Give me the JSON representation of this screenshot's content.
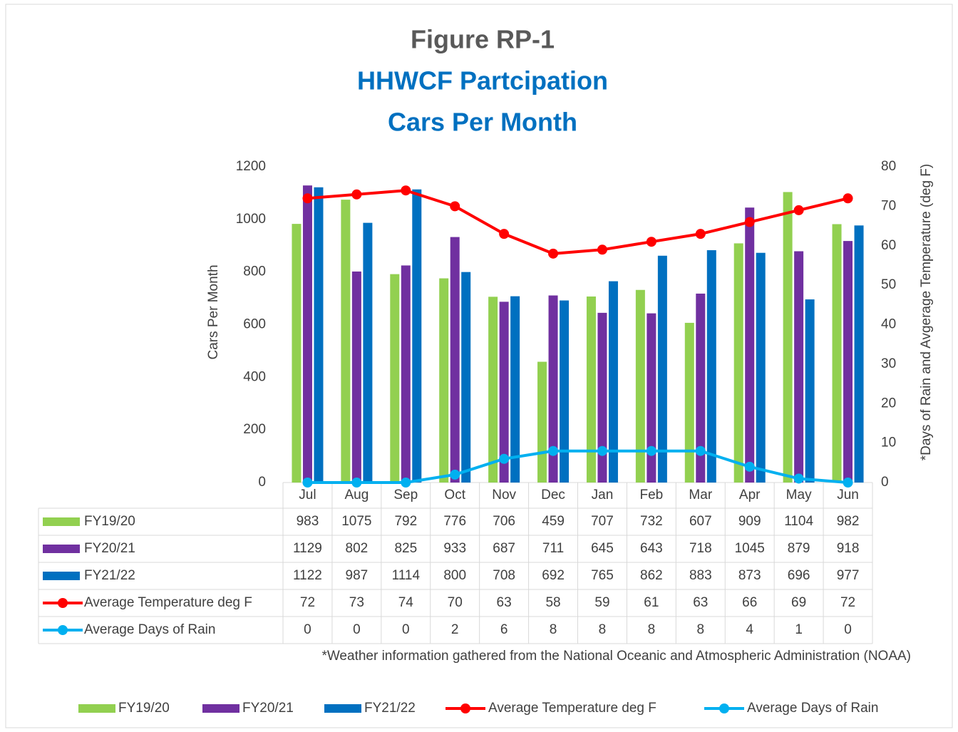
{
  "chart_data": {
    "type": "bar",
    "title": "Figure RP-1",
    "subtitle": [
      "HHWCF Partcipation",
      "Cars Per Month"
    ],
    "y_label": "Cars Per Month",
    "y2_label": "*Days of Rain and  Avgerage Temperature (deg F)",
    "annotation": "*Weather information gathered from the National Oceanic and Atmospheric Administration (NOAA)",
    "categories": [
      "Jul",
      "Aug",
      "Sep",
      "Oct",
      "Nov",
      "Dec",
      "Jan",
      "Feb",
      "Mar",
      "Apr",
      "May",
      "Jun"
    ],
    "series": [
      {
        "name": "FY19/20",
        "type": "bar",
        "color": "#92d050",
        "values": [
          983,
          1075,
          792,
          776,
          706,
          459,
          707,
          732,
          607,
          909,
          1104,
          982
        ]
      },
      {
        "name": "FY20/21",
        "type": "bar",
        "color": "#7030a0",
        "values": [
          1129,
          802,
          825,
          933,
          687,
          711,
          645,
          643,
          718,
          1045,
          879,
          918
        ]
      },
      {
        "name": "FY21/22",
        "type": "bar",
        "color": "#0070c0",
        "values": [
          1122,
          987,
          1114,
          800,
          708,
          692,
          765,
          862,
          883,
          873,
          696,
          977
        ]
      },
      {
        "name": "Average Temperature deg F",
        "type": "line",
        "axis": "y2",
        "color": "#ff0000",
        "values": [
          72,
          73,
          74,
          70,
          63,
          58,
          59,
          61,
          63,
          66,
          69,
          72
        ]
      },
      {
        "name": "Average Days of Rain",
        "type": "line",
        "axis": "y2",
        "color": "#00b0f0",
        "values": [
          0,
          0,
          0,
          2,
          6,
          8,
          8,
          8,
          8,
          4,
          1,
          0
        ]
      }
    ],
    "ylim": [
      0,
      1200
    ],
    "yticks": [
      0,
      200,
      400,
      600,
      800,
      1000,
      1200
    ],
    "y2lim": [
      0,
      80
    ],
    "y2ticks": [
      0,
      10,
      20,
      30,
      40,
      50,
      60,
      70,
      80
    ],
    "grid": false,
    "legend": "bottom",
    "data_table": true
  }
}
